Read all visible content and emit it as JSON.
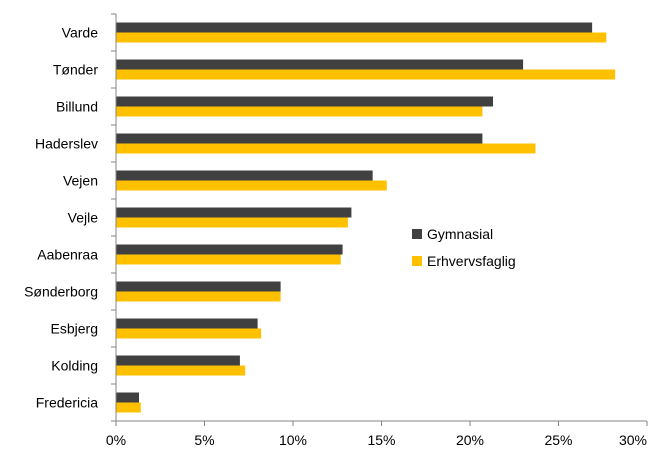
{
  "chart_data": {
    "type": "bar",
    "orientation": "horizontal",
    "categories": [
      "Varde",
      "Tønder",
      "Billund",
      "Haderslev",
      "Vejen",
      "Vejle",
      "Aabenraa",
      "Sønderborg",
      "Esbjerg",
      "Kolding",
      "Fredericia"
    ],
    "series": [
      {
        "name": "Gymnasial",
        "color": "#404040",
        "values": [
          0.269,
          0.23,
          0.213,
          0.207,
          0.145,
          0.133,
          0.128,
          0.093,
          0.08,
          0.07,
          0.013
        ]
      },
      {
        "name": "Erhvervsfaglig",
        "color": "#FFC000",
        "values": [
          0.277,
          0.282,
          0.207,
          0.237,
          0.153,
          0.131,
          0.127,
          0.093,
          0.082,
          0.073,
          0.014
        ]
      }
    ],
    "xlim": [
      0,
      0.3
    ],
    "x_ticks": [
      0,
      0.05,
      0.1,
      0.15,
      0.2,
      0.25,
      0.3
    ],
    "x_tick_labels": [
      "0%",
      "5%",
      "10%",
      "15%",
      "20%",
      "25%",
      "30%"
    ],
    "grid": false,
    "legend_position": "center-right"
  }
}
